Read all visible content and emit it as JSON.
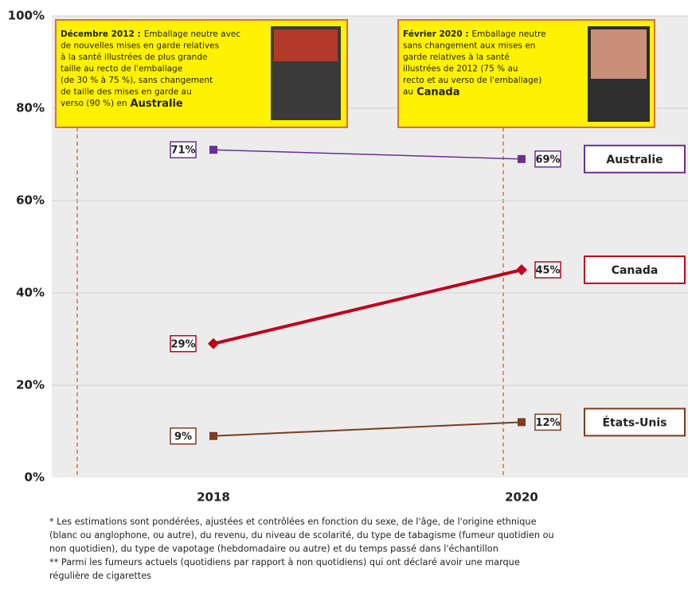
{
  "chart_data": {
    "type": "line",
    "categories": [
      "2018",
      "2020"
    ],
    "ylim": [
      0,
      100
    ],
    "yticks": [
      {
        "value": 0,
        "label": "0%"
      },
      {
        "value": 20,
        "label": "20%"
      },
      {
        "value": 40,
        "label": "40%"
      },
      {
        "value": 60,
        "label": "60%"
      },
      {
        "value": 80,
        "label": "80%"
      },
      {
        "value": 100,
        "label": "100%"
      }
    ],
    "grid": true,
    "series": [
      {
        "name": "Australie",
        "color": "#6b2f93",
        "marker": "square",
        "width": 1.5,
        "values": [
          71,
          69
        ],
        "value_labels": [
          "71%",
          "69%"
        ]
      },
      {
        "name": "Canada",
        "color": "#c0001c",
        "marker": "diamond",
        "width": 4,
        "values": [
          29,
          45
        ],
        "value_labels": [
          "29%",
          "45%"
        ]
      },
      {
        "name": "États-Unis",
        "color": "#7a3d1f",
        "marker": "square",
        "width": 2,
        "values": [
          9,
          12
        ],
        "value_labels": [
          "9%",
          "12%"
        ]
      }
    ],
    "annotations": [
      {
        "date": "Décembre 2012 :",
        "lines": [
          "Emballage neutre avec",
          "de nouvelles mises en garde relatives",
          "à la santé illustrées de plus grande",
          "taille au recto de l'emballage",
          "(de 30 % à 75 %), sans changement",
          "de taille des mises en garde au",
          "verso (90 %) en"
        ],
        "country": "Australie"
      },
      {
        "date": "Février 2020 :",
        "lines": [
          "Emballage neutre",
          "sans changement aux mises en",
          "garde relatives à la santé",
          "illustrées de 2012 (75 % au",
          "recto et au verso de l'emballage)",
          "au"
        ],
        "country": "Canada"
      }
    ],
    "footnotes": [
      "* Les estimations sont pondérées, ajustées et contrôlées en fonction du sexe, de l'âge, de l'origine ethnique",
      "(blanc ou anglophone, ou autre), du revenu, du niveau de scolarité, du type de tabagisme (fumeur quotidien ou",
      "non quotidien), du type de vapotage (hebdomadaire ou autre) et du temps passé dans l'échantillon",
      "** Parmi les fumeurs actuels (quotidiens par rapport à non quotidiens) qui ont déclaré avoir une marque",
      "régulière de cigarettes"
    ]
  }
}
